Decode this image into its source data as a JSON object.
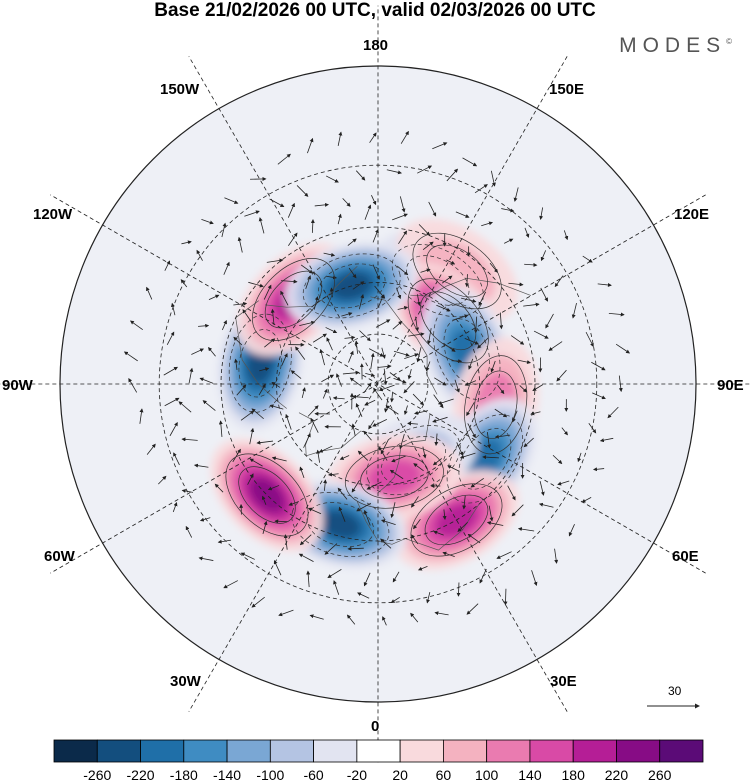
{
  "title": "Base 21/02/2026 00 UTC, valid 02/03/2026 00 UTC",
  "brand": "MODES",
  "brand_mark": "©",
  "longitude_labels": {
    "top": "180",
    "bottom": "0",
    "left": "90W",
    "right": "90E",
    "upper_left": "150W",
    "upper_right": "150E",
    "mid_upper_left": "120W",
    "mid_upper_right": "120E",
    "mid_lower_left": "60W",
    "mid_lower_right": "60E",
    "lower_left": "30W",
    "lower_right": "30E"
  },
  "vector_reference": {
    "value": "30"
  },
  "colorbar": {
    "labels": [
      "-260",
      "-220",
      "-180",
      "-140",
      "-100",
      "-60",
      "-20",
      "20",
      "60",
      "100",
      "140",
      "180",
      "220",
      "260"
    ],
    "colors": [
      "#0b2a4a",
      "#134e7e",
      "#1f6fa8",
      "#3f8cc2",
      "#7aa7d4",
      "#b4c4e3",
      "#e2e4f1",
      "#ffffff",
      "#f9dadd",
      "#f4b2c0",
      "#ea7bb0",
      "#d94aa6",
      "#b51e96",
      "#870c85",
      "#5b0b77"
    ]
  },
  "chart_data": {
    "type": "heatmap",
    "projection": "north polar stereographic",
    "field": "height anomaly with wind vectors",
    "anomaly_centers": [
      {
        "lon": 150,
        "lat": 55,
        "sign": "negative",
        "value": -200
      },
      {
        "lon": 145,
        "lat": 50,
        "sign": "positive",
        "value": 100
      },
      {
        "lon": 132,
        "lat": 62,
        "sign": "positive",
        "value": 240
      },
      {
        "lon": 110,
        "lat": 62,
        "sign": "negative",
        "value": -200
      },
      {
        "lon": 80,
        "lat": 55,
        "sign": "positive",
        "value": 140
      },
      {
        "lon": 55,
        "lat": 52,
        "sign": "negative",
        "value": -200
      },
      {
        "lon": 30,
        "lat": 45,
        "sign": "positive",
        "value": 220
      },
      {
        "lon": 25,
        "lat": 65,
        "sign": "negative",
        "value": -100
      },
      {
        "lon": 10,
        "lat": 62,
        "sign": "positive",
        "value": 180
      },
      {
        "lon": -15,
        "lat": 48,
        "sign": "negative",
        "value": -260
      },
      {
        "lon": -45,
        "lat": 45,
        "sign": "positive",
        "value": 250
      },
      {
        "lon": -100,
        "lat": 55,
        "sign": "negative",
        "value": -250
      },
      {
        "lon": -135,
        "lat": 55,
        "sign": "positive",
        "value": 220
      },
      {
        "lon": -165,
        "lat": 60,
        "sign": "negative",
        "value": -250
      }
    ]
  }
}
